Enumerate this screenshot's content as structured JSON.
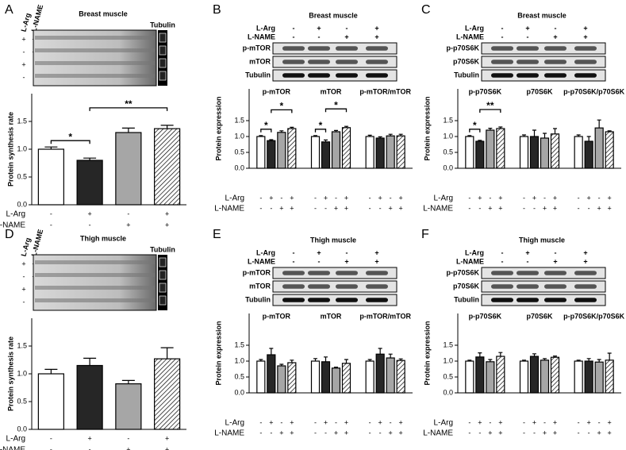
{
  "chart_data": [
    {
      "type": "bar",
      "panel": "A",
      "title": "Breast muscle",
      "blot_labels": [
        "Tubulin"
      ],
      "y_label": "Protein synthesis rate",
      "conditions": {
        "labels": [
          "L-Arg",
          "L-NAME"
        ],
        "signs": [
          [
            "-",
            "+",
            "-",
            "+"
          ],
          [
            "-",
            "-",
            "+",
            "+"
          ]
        ]
      },
      "colors": [
        "#ffffff",
        "#262626",
        "#a6a6a6",
        "#ffffff"
      ],
      "hatch": [
        false,
        false,
        false,
        true
      ],
      "values": [
        1.0,
        0.8,
        1.3,
        1.37
      ],
      "errors": [
        0.04,
        0.04,
        0.08,
        0.06
      ],
      "significance": [
        {
          "from": 0,
          "to": 1,
          "label": "*"
        },
        {
          "from": 1,
          "to": 3,
          "label": "**"
        }
      ],
      "ylim": [
        0,
        2
      ],
      "yticks": [
        {
          "value": 0,
          "label": "0.0"
        },
        0.5,
        {
          "value": 1,
          "label": "1.0"
        },
        1.5
      ]
    },
    {
      "type": "grouped_bar",
      "panel": "B",
      "title": "Breast muscle",
      "blot_labels": [
        "p-mTOR",
        "mTOR",
        "Tubulin"
      ],
      "y_label": "Protein expression",
      "conditions": {
        "labels": [
          "L-Arg",
          "L-NAME"
        ],
        "signs": [
          [
            "-",
            "+",
            "-",
            "+"
          ],
          [
            "-",
            "-",
            "+",
            "+"
          ]
        ]
      },
      "colors": [
        "#ffffff",
        "#262626",
        "#a6a6a6",
        "#ffffff"
      ],
      "hatch": [
        false,
        false,
        false,
        true
      ],
      "groups": [
        {
          "name": "p-mTOR",
          "values": [
            1.0,
            0.87,
            1.13,
            1.25
          ],
          "errors": [
            0.03,
            0.03,
            0.05,
            0.04
          ],
          "significance": [
            {
              "from": 0,
              "to": 1,
              "label": "*"
            },
            {
              "from": 1,
              "to": 3,
              "label": "*"
            }
          ]
        },
        {
          "name": "mTOR",
          "values": [
            1.0,
            0.83,
            1.15,
            1.28
          ],
          "errors": [
            0.03,
            0.06,
            0.04,
            0.04
          ],
          "significance": [
            {
              "from": 0,
              "to": 1,
              "label": "*"
            },
            {
              "from": 1,
              "to": 3,
              "label": "*"
            }
          ]
        },
        {
          "name": "p-mTOR/mTOR",
          "values": [
            1.0,
            0.95,
            1.02,
            1.02
          ],
          "errors": [
            0.04,
            0.04,
            0.05,
            0.05
          ]
        }
      ],
      "ylim": [
        0,
        2.5
      ],
      "yticks": [
        {
          "value": 0,
          "label": "0.0"
        },
        0.5,
        {
          "value": 1,
          "label": "1.0"
        },
        1.5
      ]
    },
    {
      "type": "grouped_bar",
      "panel": "C",
      "title": "Breast muscle",
      "blot_labels": [
        "p-p70S6K",
        "p70S6K",
        "Tubulin"
      ],
      "y_label": "Protein expression",
      "conditions": {
        "labels": [
          "L-Arg",
          "L-NAME"
        ],
        "signs": [
          [
            "-",
            "+",
            "-",
            "+"
          ],
          [
            "-",
            "-",
            "+",
            "+"
          ]
        ]
      },
      "colors": [
        "#ffffff",
        "#262626",
        "#a6a6a6",
        "#ffffff"
      ],
      "hatch": [
        false,
        false,
        false,
        true
      ],
      "groups": [
        {
          "name": "p-p70S6K",
          "values": [
            1.0,
            0.85,
            1.2,
            1.25
          ],
          "errors": [
            0.03,
            0.03,
            0.06,
            0.05
          ],
          "significance": [
            {
              "from": 0,
              "to": 1,
              "label": "*"
            },
            {
              "from": 1,
              "to": 3,
              "label": "**"
            }
          ]
        },
        {
          "name": "p70S6K",
          "values": [
            1.0,
            1.0,
            0.95,
            1.08
          ],
          "errors": [
            0.05,
            0.2,
            0.15,
            0.17
          ]
        },
        {
          "name": "p-p70S6K/p70S6K",
          "values": [
            1.0,
            0.85,
            1.27,
            1.15
          ],
          "errors": [
            0.05,
            0.15,
            0.25,
            0.03
          ]
        }
      ],
      "ylim": [
        0,
        2.5
      ],
      "yticks": [
        {
          "value": 0,
          "label": "0.0"
        },
        0.5,
        {
          "value": 1,
          "label": "1.0"
        },
        1.5
      ]
    },
    {
      "type": "bar",
      "panel": "D",
      "title": "Thigh muscle",
      "blot_labels": [
        "Tubulin"
      ],
      "y_label": "Protein synthesis rate",
      "conditions": {
        "labels": [
          "L-Arg",
          "L-NAME"
        ],
        "signs": [
          [
            "-",
            "+",
            "-",
            "+"
          ],
          [
            "-",
            "-",
            "+",
            "+"
          ]
        ]
      },
      "colors": [
        "#ffffff",
        "#262626",
        "#a6a6a6",
        "#ffffff"
      ],
      "hatch": [
        false,
        false,
        false,
        true
      ],
      "values": [
        1.0,
        1.15,
        0.82,
        1.27
      ],
      "errors": [
        0.08,
        0.13,
        0.06,
        0.2
      ],
      "ylim": [
        0,
        2
      ],
      "yticks": [
        {
          "value": 0,
          "label": "0.0"
        },
        0.5,
        {
          "value": 1,
          "label": "1.0"
        },
        1.5
      ]
    },
    {
      "type": "grouped_bar",
      "panel": "E",
      "title": "Thigh muscle",
      "blot_labels": [
        "p-mTOR",
        "mTOR",
        "Tubulin"
      ],
      "y_label": "Protein expression",
      "conditions": {
        "labels": [
          "L-Arg",
          "L-NAME"
        ],
        "signs": [
          [
            "-",
            "+",
            "-",
            "+"
          ],
          [
            "-",
            "-",
            "+",
            "+"
          ]
        ]
      },
      "colors": [
        "#ffffff",
        "#262626",
        "#a6a6a6",
        "#ffffff"
      ],
      "hatch": [
        false,
        false,
        false,
        true
      ],
      "groups": [
        {
          "name": "p-mTOR",
          "values": [
            1.0,
            1.2,
            0.85,
            0.95
          ],
          "errors": [
            0.05,
            0.2,
            0.05,
            0.08
          ]
        },
        {
          "name": "mTOR",
          "values": [
            1.0,
            0.98,
            0.78,
            0.93
          ],
          "errors": [
            0.08,
            0.15,
            0.03,
            0.12
          ]
        },
        {
          "name": "p-mTOR/mTOR",
          "values": [
            1.0,
            1.22,
            1.1,
            1.02
          ],
          "errors": [
            0.05,
            0.18,
            0.12,
            0.05
          ]
        }
      ],
      "ylim": [
        0,
        2.5
      ],
      "yticks": [
        {
          "value": 0,
          "label": "0.0"
        },
        0.5,
        {
          "value": 1,
          "label": "1.0"
        },
        1.5
      ]
    },
    {
      "type": "grouped_bar",
      "panel": "F",
      "title": "Thigh muscle",
      "blot_labels": [
        "p-p70S6K",
        "p70S6K",
        "Tubulin"
      ],
      "y_label": "Protein expression",
      "conditions": {
        "labels": [
          "L-Arg",
          "L-NAME"
        ],
        "signs": [
          [
            "-",
            "+",
            "-",
            "+"
          ],
          [
            "-",
            "-",
            "+",
            "+"
          ]
        ]
      },
      "colors": [
        "#ffffff",
        "#262626",
        "#a6a6a6",
        "#ffffff"
      ],
      "hatch": [
        false,
        false,
        false,
        true
      ],
      "groups": [
        {
          "name": "p-p70S6K",
          "values": [
            1.0,
            1.13,
            0.98,
            1.15
          ],
          "errors": [
            0.03,
            0.13,
            0.07,
            0.12
          ]
        },
        {
          "name": "p70S6K",
          "values": [
            1.0,
            1.15,
            1.03,
            1.12
          ],
          "errors": [
            0.03,
            0.08,
            0.05,
            0.04
          ]
        },
        {
          "name": "p-p70S6K/p70S6K",
          "values": [
            1.0,
            1.0,
            0.97,
            1.03
          ],
          "errors": [
            0.03,
            0.08,
            0.08,
            0.22
          ]
        }
      ],
      "ylim": [
        0,
        2.5
      ],
      "yticks": [
        {
          "value": 0,
          "label": "0.0"
        },
        0.5,
        {
          "value": 1,
          "label": "1.0"
        },
        1.5
      ]
    }
  ]
}
